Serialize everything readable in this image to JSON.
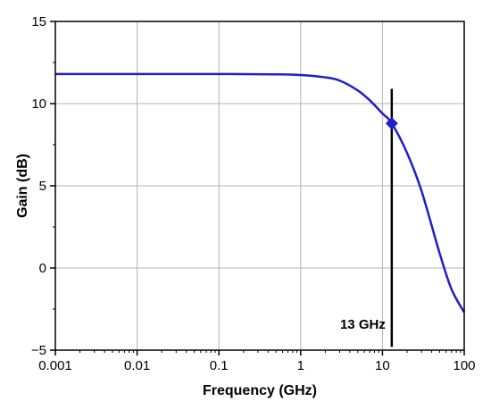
{
  "chart_data": {
    "type": "line",
    "xlabel": "Frequency (GHz)",
    "ylabel": "Gain (dB)",
    "x_scale": "log",
    "xlim": [
      0.001,
      100
    ],
    "ylim": [
      -5,
      15
    ],
    "x_ticks": [
      {
        "value": 0.001,
        "label": "0.001"
      },
      {
        "value": 0.01,
        "label": "0.01"
      },
      {
        "value": 0.1,
        "label": "0.1"
      },
      {
        "value": 1,
        "label": "1"
      },
      {
        "value": 10,
        "label": "10"
      },
      {
        "value": 100,
        "label": "100"
      }
    ],
    "y_ticks": [
      {
        "value": -5,
        "label": "−5"
      },
      {
        "value": 0,
        "label": "0"
      },
      {
        "value": 5,
        "label": "5"
      },
      {
        "value": 10,
        "label": "10"
      },
      {
        "value": 15,
        "label": "15"
      }
    ],
    "grid": true,
    "series": [
      {
        "color": "#1f1fc8",
        "x": [
          0.001,
          0.01,
          0.1,
          0.5,
          1,
          2,
          3,
          5,
          7,
          10,
          13,
          20,
          30,
          50,
          70,
          100
        ],
        "y": [
          11.8,
          11.8,
          11.8,
          11.78,
          11.74,
          11.6,
          11.4,
          10.8,
          10.2,
          9.4,
          8.8,
          7.0,
          4.7,
          0.9,
          -1.3,
          -2.7
        ]
      }
    ],
    "marker": {
      "shape": "diamond",
      "x": 13,
      "y": 8.8,
      "color": "#1f1fc8"
    },
    "annotations": [
      {
        "type": "vline",
        "x": 13,
        "y_from": -4.8,
        "y_to": 10.9,
        "color": "#000000"
      },
      {
        "type": "text",
        "text": "13 GHz",
        "x": 13,
        "y": -3.7
      }
    ]
  }
}
